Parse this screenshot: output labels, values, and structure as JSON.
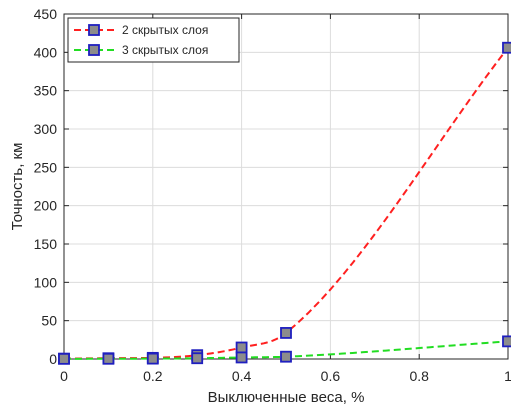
{
  "chart_data": {
    "type": "line",
    "xlabel": "Выключенные веса, %",
    "ylabel": "Точность, км",
    "xlim": [
      0,
      1
    ],
    "ylim": [
      0,
      450
    ],
    "xticks": [
      0,
      0.2,
      0.4,
      0.6,
      0.8,
      1
    ],
    "xtick_labels": [
      "0",
      "0.2",
      "0.4",
      "0.6",
      "0.8",
      "1"
    ],
    "yticks": [
      0,
      50,
      100,
      150,
      200,
      250,
      300,
      350,
      400,
      450
    ],
    "ytick_labels": [
      "0",
      "50",
      "100",
      "150",
      "200",
      "250",
      "300",
      "350",
      "400",
      "450"
    ],
    "grid": true,
    "legend_position": "top-left",
    "marker_face_color": "#8c8c8c",
    "marker_edge_color": "#1f1fbf",
    "series": [
      {
        "name": "2 скрытых слоя",
        "color": "#ff2020",
        "line_style": "dashed",
        "x": [
          0,
          0.1,
          0.2,
          0.3,
          0.4,
          0.5,
          1
        ],
        "y": [
          0.5,
          1,
          1.5,
          5,
          15,
          34,
          406
        ]
      },
      {
        "name": "3 скрытых слоя",
        "color": "#22dd22",
        "line_style": "dashed",
        "x": [
          0,
          0.1,
          0.2,
          0.3,
          0.4,
          0.5,
          1
        ],
        "y": [
          0.2,
          0.3,
          0.5,
          1,
          2,
          3,
          23
        ]
      }
    ]
  }
}
